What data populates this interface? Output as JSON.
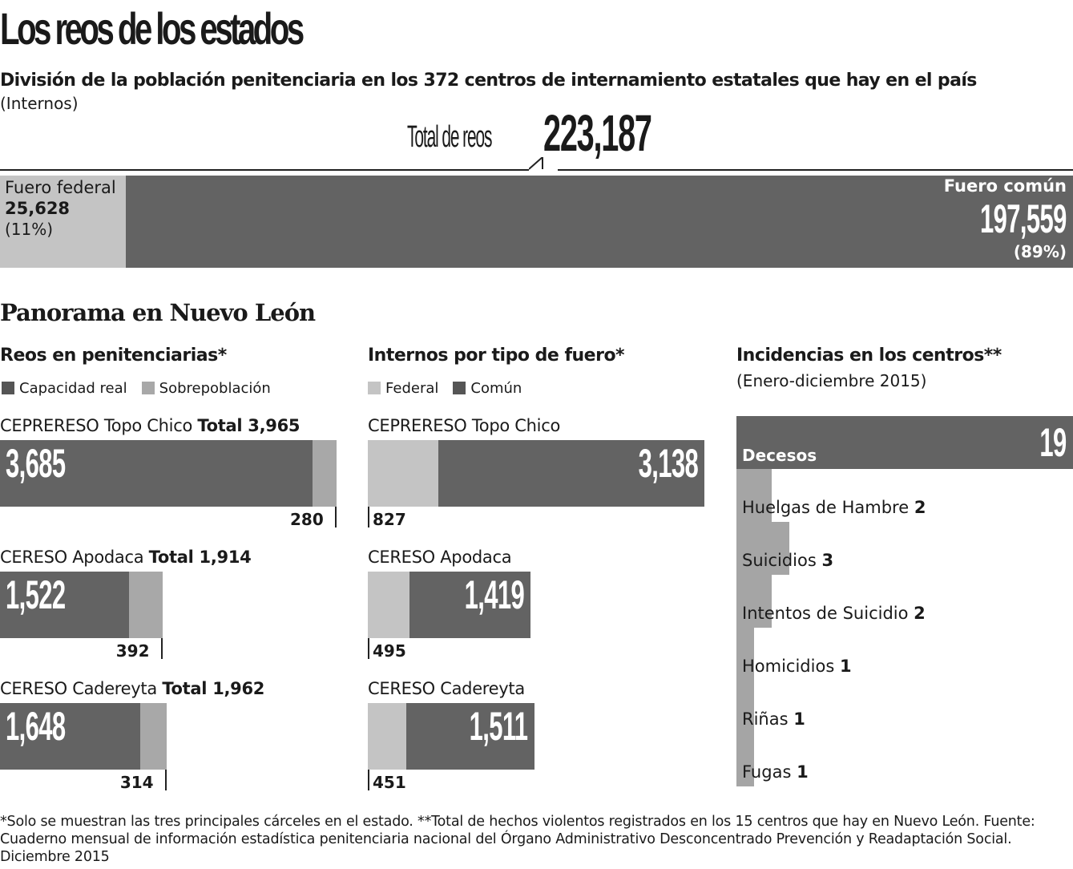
{
  "title": "Los reos de los estados",
  "subtitle": "División de la población penitenciaria en los 372 centros de internamiento estatales que hay en el país",
  "unit": "(Internos)",
  "total": {
    "label": "Total de reos",
    "value": "223,187"
  },
  "colors": {
    "dark": "#636363",
    "light": "#a8a8a8",
    "federal": "#c4c4c4"
  },
  "chart_data": [
    {
      "type": "bar",
      "title": "Total de reos",
      "orientation": "horizontal-stacked",
      "categories": [
        "Fuero federal",
        "Fuero común"
      ],
      "values": [
        25628,
        197559
      ],
      "labels": [
        "25,628",
        "197,559"
      ],
      "percent": [
        "(11%)",
        "(89%)"
      ]
    },
    {
      "type": "bar",
      "title": "Reos en penitenciarias*",
      "legend": [
        "Capacidad real",
        "Sobrepoblación"
      ],
      "rows": [
        {
          "name": "CEPRERESO Topo Chico",
          "total_label": "Total 3,965",
          "total": 3965,
          "values": [
            3685,
            280
          ],
          "labels": [
            "3,685",
            "280"
          ]
        },
        {
          "name": "CERESO Apodaca",
          "total_label": "Total 1,914",
          "total": 1914,
          "values": [
            1522,
            392
          ],
          "labels": [
            "1,522",
            "392"
          ]
        },
        {
          "name": "CERESO Cadereyta",
          "total_label": "Total 1,962",
          "total": 1962,
          "values": [
            1648,
            314
          ],
          "labels": [
            "1,648",
            "314"
          ]
        }
      ]
    },
    {
      "type": "bar",
      "title": "Internos por tipo de fuero*",
      "legend": [
        "Federal",
        "Común"
      ],
      "rows": [
        {
          "name": "CEPRERESO Topo Chico",
          "values": [
            827,
            3138
          ],
          "labels": [
            "827",
            "3,138"
          ]
        },
        {
          "name": "CERESO Apodaca",
          "values": [
            495,
            1419
          ],
          "labels": [
            "495",
            "1,419"
          ]
        },
        {
          "name": "CERESO Cadereyta",
          "values": [
            451,
            1511
          ],
          "labels": [
            "451",
            "1,511"
          ]
        }
      ]
    },
    {
      "type": "bar",
      "title": "Incidencias en los centros**",
      "subtitle": "(Enero-diciembre 2015)",
      "categories": [
        "Decesos",
        "Huelgas de Hambre",
        "Suicidios",
        "Intentos de Suicidio",
        "Homicidios",
        "Riñas",
        "Fugas"
      ],
      "values": [
        19,
        2,
        3,
        2,
        1,
        1,
        1
      ],
      "labels": [
        "19",
        "2",
        "3",
        "2",
        "1",
        "1",
        "1"
      ]
    }
  ],
  "section": "Panorama en Nuevo León",
  "footnote": "*Solo se muestran las tres principales cárceles en el estado. **Total de hechos violentos registrados en los 15 centros que hay en Nuevo León. Fuente: Cuaderno mensual de información estadística penitenciaria nacional del Órgano Administrativo Desconcentrado Prevención y Readaptación Social. Diciembre 2015"
}
